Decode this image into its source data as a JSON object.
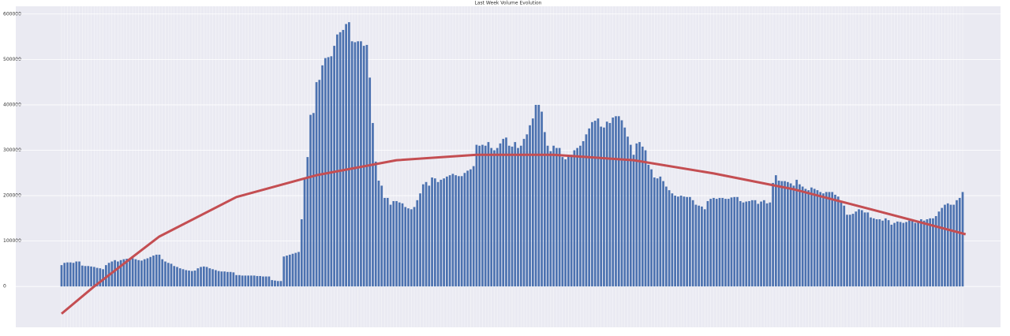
{
  "chart_data": {
    "type": "bar",
    "title": "Last Week Volume Evolution",
    "values": [
      47000,
      52000,
      53000,
      53000,
      52000,
      55000,
      55000,
      46000,
      45000,
      45000,
      44000,
      43000,
      41000,
      40000,
      38000,
      47000,
      52000,
      55000,
      58000,
      55000,
      58000,
      60000,
      61000,
      62000,
      62000,
      60000,
      58000,
      57000,
      60000,
      62000,
      65000,
      68000,
      70000,
      70000,
      60000,
      55000,
      52000,
      50000,
      45000,
      43000,
      40000,
      38000,
      36000,
      35000,
      34000,
      35000,
      40000,
      43000,
      44000,
      43000,
      40000,
      38000,
      36000,
      34000,
      33000,
      33000,
      32000,
      32000,
      31000,
      25000,
      25000,
      24000,
      24000,
      24000,
      24000,
      24000,
      23000,
      23000,
      22000,
      22000,
      22000,
      14000,
      13000,
      12000,
      12000,
      66000,
      68000,
      70000,
      72000,
      74000,
      76000,
      148000,
      238000,
      285000,
      378000,
      382000,
      450000,
      455000,
      487000,
      503000,
      505000,
      507000,
      530000,
      555000,
      560000,
      565000,
      578000,
      582000,
      540000,
      538000,
      540000,
      540000,
      530000,
      532000,
      460000,
      360000,
      275000,
      233000,
      222000,
      195000,
      195000,
      180000,
      188000,
      188000,
      185000,
      183000,
      175000,
      172000,
      170000,
      175000,
      190000,
      205000,
      225000,
      230000,
      222000,
      240000,
      238000,
      230000,
      235000,
      238000,
      242000,
      245000,
      248000,
      245000,
      243000,
      243000,
      250000,
      255000,
      258000,
      265000,
      312000,
      310000,
      312000,
      310000,
      318000,
      305000,
      300000,
      305000,
      315000,
      325000,
      328000,
      310000,
      308000,
      318000,
      305000,
      310000,
      325000,
      335000,
      355000,
      370000,
      400000,
      400000,
      385000,
      340000,
      310000,
      298000,
      310000,
      305000,
      305000,
      285000,
      280000,
      287000,
      290000,
      300000,
      305000,
      310000,
      320000,
      335000,
      348000,
      362000,
      365000,
      370000,
      352000,
      350000,
      363000,
      360000,
      372000,
      375000,
      375000,
      366000,
      350000,
      330000,
      312000,
      290000,
      315000,
      318000,
      308000,
      300000,
      268000,
      258000,
      240000,
      238000,
      242000,
      232000,
      220000,
      212000,
      205000,
      200000,
      198000,
      200000,
      198000,
      197000,
      197000,
      190000,
      180000,
      178000,
      176000,
      170000,
      188000,
      193000,
      195000,
      193000,
      195000,
      195000,
      193000,
      193000,
      196000,
      197000,
      197000,
      188000,
      185000,
      187000,
      188000,
      190000,
      190000,
      182000,
      187000,
      190000,
      183000,
      185000,
      228000,
      245000,
      233000,
      232000,
      232000,
      230000,
      227000,
      222000,
      235000,
      225000,
      220000,
      215000,
      212000,
      218000,
      215000,
      212000,
      208000,
      205000,
      208000,
      208000,
      208000,
      202000,
      198000,
      185000,
      178000,
      158000,
      158000,
      160000,
      165000,
      170000,
      168000,
      163000,
      163000,
      152000,
      150000,
      148000,
      148000,
      145000,
      150000,
      146000,
      136000,
      140000,
      143000,
      142000,
      140000,
      142000,
      145000,
      148000,
      140000,
      142000,
      148000,
      145000,
      148000,
      150000,
      150000,
      155000,
      165000,
      173000,
      180000,
      183000,
      180000,
      180000,
      190000,
      195000,
      208000
    ],
    "color": "#4c72b0",
    "trend": {
      "type": "line",
      "color": "#c44e52",
      "x": [
        0,
        11,
        33,
        59,
        86,
        113,
        140,
        166,
        193,
        220,
        247,
        273,
        305
      ],
      "values": [
        -60000,
        0,
        110000,
        197000,
        245000,
        278000,
        290000,
        290000,
        278000,
        249000,
        214000,
        170000,
        115000
      ]
    },
    "ylim": [
      -90000,
      617000
    ],
    "yticks": [
      0,
      100000,
      200000,
      300000,
      400000,
      500000,
      600000
    ],
    "grid": true
  }
}
